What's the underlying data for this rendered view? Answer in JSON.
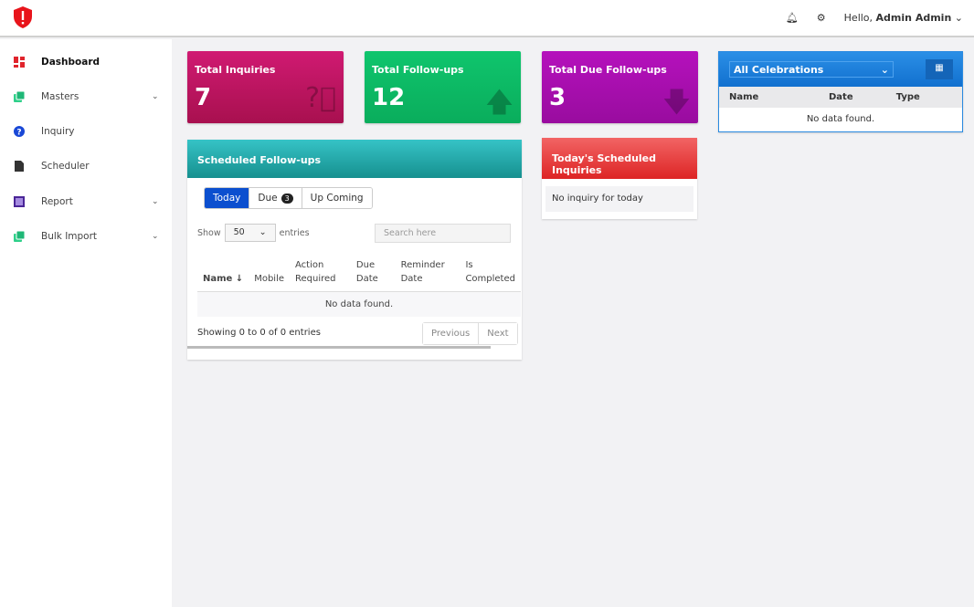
{
  "header": {
    "greeting": "Hello,",
    "user": "Admin Admin",
    "icons": [
      "shield-alert-logo",
      "bell-icon",
      "gear-icon",
      "chevron-down-icon"
    ]
  },
  "sidebar": {
    "items": [
      {
        "label": "Dashboard",
        "icon": "dashboard-icon",
        "active": true
      },
      {
        "label": "Masters",
        "icon": "masters-icon",
        "has_submenu": true
      },
      {
        "label": "Inquiry",
        "icon": "question-icon"
      },
      {
        "label": "Scheduler",
        "icon": "file-icon"
      },
      {
        "label": "Report",
        "icon": "report-icon",
        "has_submenu": true
      },
      {
        "label": "Bulk Import",
        "icon": "import-icon",
        "has_submenu": true
      }
    ]
  },
  "cards": [
    {
      "title": "Total Inquiries",
      "value": "7",
      "icon": "question-circle-icon",
      "color": "#c8176a"
    },
    {
      "title": "Total Follow-ups",
      "value": "12",
      "icon": "arrow-up-icon",
      "color": "#0dbe68"
    },
    {
      "title": "Total Due Follow-ups",
      "value": "3",
      "icon": "arrow-down-icon",
      "color": "#ab0fb3"
    }
  ],
  "scheduled": {
    "title": "Scheduled Follow-ups",
    "tabs": [
      {
        "label": "Today"
      },
      {
        "label": "Due",
        "badge": "3"
      },
      {
        "label": "Up Coming"
      }
    ],
    "show_label": "Show",
    "page_size": "50",
    "entries_label": "entries",
    "search_placeholder": "Search here",
    "columns": [
      "Name",
      "Mobile",
      "Action Required",
      "Due Date",
      "Reminder Date",
      "Is Completed"
    ],
    "empty": "No data found.",
    "showing": "Showing 0 to 0 of 0 entries",
    "prev": "Previous",
    "next": "Next"
  },
  "today": {
    "title": "Today's Scheduled Inquiries",
    "empty": "No inquiry for today"
  },
  "celebrations": {
    "selected": "All Celebrations",
    "columns": [
      "Name",
      "Date",
      "Type"
    ],
    "empty": "No data found."
  }
}
